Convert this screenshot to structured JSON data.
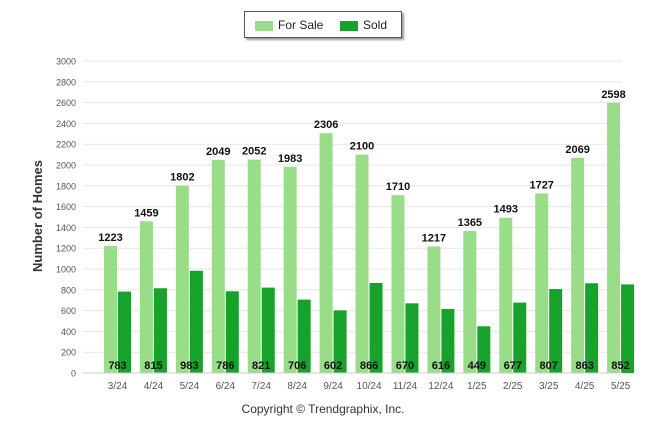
{
  "colors": {
    "for_sale": "#99dd88",
    "sold": "#17a32b",
    "grid": "#e6e6e6",
    "axis_text": "#555555",
    "label_text": "#111111"
  },
  "legend": {
    "items": [
      {
        "label": "For Sale",
        "color": "#99dd88"
      },
      {
        "label": "Sold",
        "color": "#17a32b"
      }
    ]
  },
  "copyright": "Copyright © Trendgraphix, Inc.",
  "chart_data": {
    "type": "bar",
    "ylabel": "Number of Homes",
    "xlabel": "",
    "ylim": [
      0,
      3000
    ],
    "yticks": [
      0,
      200,
      400,
      600,
      800,
      1000,
      1200,
      1400,
      1600,
      1800,
      2000,
      2200,
      2400,
      2600,
      2800,
      3000
    ],
    "grid": true,
    "legend_position": "top-center",
    "categories": [
      "3/24",
      "4/24",
      "5/24",
      "6/24",
      "7/24",
      "8/24",
      "9/24",
      "10/24",
      "11/24",
      "12/24",
      "1/25",
      "2/25",
      "3/25",
      "4/25",
      "5/25"
    ],
    "series": [
      {
        "name": "For Sale",
        "values": [
          1223,
          1459,
          1802,
          2049,
          2052,
          1983,
          2306,
          2100,
          1710,
          1217,
          1365,
          1493,
          1727,
          2069,
          2598
        ]
      },
      {
        "name": "Sold",
        "values": [
          783,
          815,
          983,
          786,
          821,
          706,
          602,
          866,
          670,
          616,
          449,
          677,
          807,
          863,
          852
        ]
      }
    ]
  }
}
